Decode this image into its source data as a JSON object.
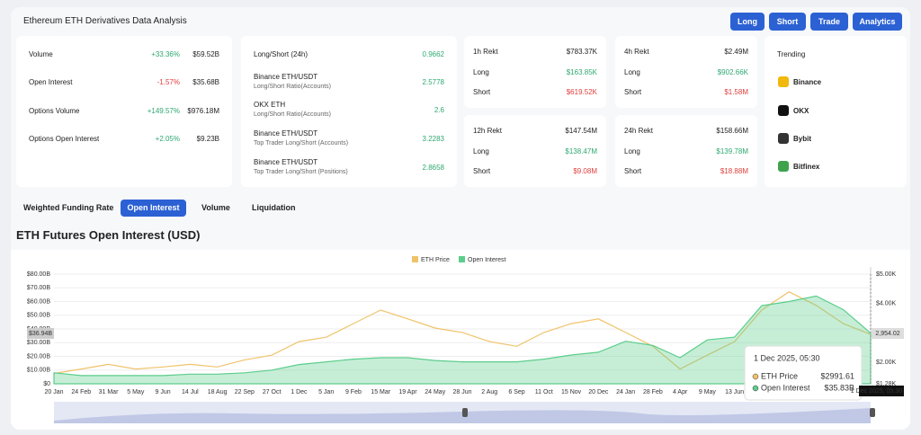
{
  "header": {
    "title": "Ethereum ETH Derivatives Data Analysis",
    "buttons": [
      "Long",
      "Short",
      "Trade",
      "Analytics"
    ]
  },
  "stats": [
    [
      "Volume",
      "+33.36%",
      "$59.52B"
    ],
    [
      "Open Interest",
      "-1.57%",
      "$35.68B"
    ],
    [
      "Options Volume",
      "+149.57%",
      "$976.18M"
    ],
    [
      "Options Open Interest",
      "+2.05%",
      "$9.23B"
    ]
  ],
  "ratios": [
    {
      "name": "Long/Short (24h)",
      "value": "0.9662"
    },
    {
      "name": "Binance ETH/USDT",
      "sub": "Long/Short Ratio(Accounts)",
      "value": "2.5778"
    },
    {
      "name": "OKX ETH",
      "sub": "Long/Short Ratio(Accounts)",
      "value": "2.6"
    },
    {
      "name": "Binance ETH/USDT",
      "sub": "Top Trader Long/Short (Accounts)",
      "value": "3.2283"
    },
    {
      "name": "Binance ETH/USDT",
      "sub": "Top Trader Long/Short (Positions)",
      "value": "2.8658"
    }
  ],
  "rekt_labels": [
    "Long",
    "Short"
  ],
  "rekt": [
    {
      "title": "1h Rekt",
      "total": "$783.37K",
      "long": "$163.85K",
      "short": "$619.52K"
    },
    {
      "title": "4h Rekt",
      "total": "$2.49M",
      "long": "$902.66K",
      "short": "$1.58M"
    },
    {
      "title": "12h Rekt",
      "total": "$147.54M",
      "long": "$138.47M",
      "short": "$9.08M"
    },
    {
      "title": "24h Rekt",
      "total": "$158.66M",
      "long": "$139.78M",
      "short": "$18.88M"
    }
  ],
  "trending": {
    "title": "Trending",
    "items": [
      "Binance",
      "OKX",
      "Bybit",
      "Bitfinex"
    ]
  },
  "tabs": {
    "items": [
      "Weighted Funding Rate",
      "Open Interest",
      "Volume",
      "Liquidation"
    ],
    "active": 1
  },
  "chart_data": {
    "type": "line",
    "title": "ETH Futures Open Interest (USD)",
    "categories": [
      "20 Jan",
      "24 Feb",
      "31 Mar",
      "5 May",
      "9 Jun",
      "14 Jul",
      "18 Aug",
      "22 Sep",
      "27 Oct",
      "1 Dec",
      "5 Jan",
      "9 Feb",
      "15 Mar",
      "19 Apr",
      "24 May",
      "28 Jun",
      "2 Aug",
      "6 Sep",
      "11 Oct",
      "15 Nov",
      "20 Dec",
      "24 Jan",
      "28 Feb",
      "4 Apr",
      "9 May",
      "13 Jun",
      null,
      null,
      null,
      null,
      null
    ],
    "series": [
      {
        "name": "ETH Price",
        "color": "#f0c36a",
        "axis": "y2",
        "values": [
          1630,
          1780,
          1940,
          1780,
          1850,
          1940,
          1850,
          2090,
          2250,
          2710,
          2860,
          3320,
          3780,
          3480,
          3170,
          3020,
          2710,
          2550,
          3020,
          3320,
          3480,
          3020,
          2550,
          1780,
          2250,
          2710,
          3780,
          4400,
          3940,
          3320,
          2954.02
        ]
      },
      {
        "name": "Open Interest",
        "color": "#5ccd8c",
        "values": [
          8,
          6,
          6,
          6,
          6,
          7,
          7,
          8,
          10,
          14,
          16,
          18,
          19,
          19,
          17,
          16,
          16,
          16,
          18,
          21,
          23,
          31,
          28,
          19,
          32,
          34,
          57,
          60,
          64,
          54,
          36.94
        ]
      }
    ],
    "ylim": [
      0,
      80
    ],
    "yticks": [
      {
        "value": 0,
        "label": "$0"
      },
      {
        "value": 10,
        "label": "$10.00B"
      },
      {
        "value": 20,
        "label": "$20.00B"
      },
      {
        "value": 30,
        "label": "$30.00B"
      },
      {
        "value": 40,
        "label": "$40.00B"
      },
      {
        "value": 50,
        "label": "$50.00B"
      },
      {
        "value": 60,
        "label": "$60.00B"
      },
      {
        "value": 70,
        "label": "$70.00B"
      },
      {
        "value": 80,
        "label": "$80.00B"
      }
    ],
    "y2lim": [
      1280,
      5000
    ],
    "y2ticks": [
      {
        "value": 1280,
        "label": "$1.28K"
      },
      {
        "value": 2000,
        "label": "$2.00K"
      },
      {
        "value": 4000,
        "label": "$4.00K"
      },
      {
        "value": 5000,
        "label": "$5.00K"
      }
    ],
    "grid": true,
    "end_labels": [
      "$36.94B",
      "2,954.02"
    ],
    "tooltip": {
      "title": "1 Dec 2025, 05:30",
      "rows": [
        [
          "ETH Price",
          "$2991.61"
        ],
        [
          "Open Interest",
          "$35.83B"
        ]
      ]
    }
  }
}
